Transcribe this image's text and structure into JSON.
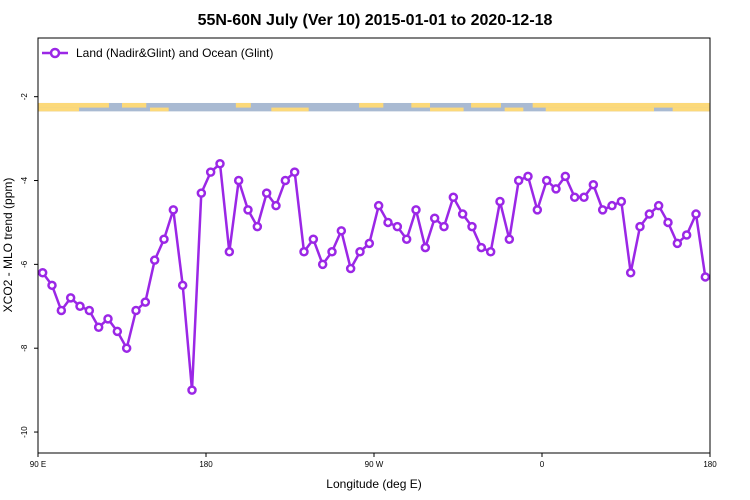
{
  "chart_data": {
    "type": "line",
    "title": "55N-60N July (Ver 10)   2015-01-01 to 2020-12-18",
    "xlabel": "Longitude (deg E)",
    "ylabel": "XCO2 - MLO trend (ppm)",
    "xlim": [
      90,
      450
    ],
    "ylim": [
      -10.5,
      -0.6
    ],
    "x_ticks": [
      {
        "value": 90,
        "label": "90 E"
      },
      {
        "value": 180,
        "label": "180"
      },
      {
        "value": 270,
        "label": "90 W"
      },
      {
        "value": 360,
        "label": "0"
      },
      {
        "value": 450,
        "label": "180"
      }
    ],
    "y_ticks": [
      {
        "value": -2,
        "label": "-2"
      },
      {
        "value": -4,
        "label": "-4"
      },
      {
        "value": -6,
        "label": "-6"
      },
      {
        "value": -8,
        "label": "-8"
      },
      {
        "value": -10,
        "label": "-10"
      }
    ],
    "grid": false,
    "legend_position": "top-left",
    "land_ocean_strip": {
      "y_range": [
        -2.15,
        -2.35
      ],
      "land_color": "#fcd97a",
      "ocean_color": "#a9bad2"
    },
    "series": [
      {
        "name": "Land (Nadir&Glint) and Ocean (Glint)",
        "color": "#9b27e6",
        "marker": "open-circle",
        "x": [
          92.5,
          97.5,
          102.5,
          107.5,
          112.5,
          117.5,
          122.5,
          127.5,
          132.5,
          137.5,
          142.5,
          147.5,
          152.5,
          157.5,
          162.5,
          167.5,
          172.5,
          177.5,
          182.5,
          187.5,
          192.5,
          197.5,
          202.5,
          207.5,
          212.5,
          217.5,
          222.5,
          227.5,
          232.5,
          237.5,
          242.5,
          247.5,
          252.5,
          257.5,
          262.5,
          267.5,
          272.5,
          277.5,
          282.5,
          287.5,
          292.5,
          297.5,
          302.5,
          307.5,
          312.5,
          317.5,
          322.5,
          327.5,
          332.5,
          337.5,
          342.5,
          347.5,
          352.5,
          357.5,
          362.5,
          367.5,
          372.5,
          377.5,
          382.5,
          387.5,
          392.5,
          397.5,
          402.5,
          407.5,
          412.5,
          417.5,
          422.5,
          427.5,
          432.5,
          437.5,
          442.5,
          447.5
        ],
        "y": [
          -6.2,
          -6.5,
          -7.1,
          -6.8,
          -7.0,
          -7.1,
          -7.5,
          -7.3,
          -7.6,
          -8.0,
          -7.1,
          -6.9,
          -5.9,
          -5.4,
          -4.7,
          -6.5,
          -9.0,
          -4.3,
          -3.8,
          -3.6,
          -5.7,
          -4.0,
          -4.7,
          -5.1,
          -4.3,
          -4.6,
          -4.0,
          -3.8,
          -5.7,
          -5.4,
          -6.0,
          -5.7,
          -5.2,
          -6.1,
          -5.7,
          -5.5,
          -4.6,
          -5.0,
          -5.1,
          -5.4,
          -4.7,
          -5.6,
          -4.9,
          -5.1,
          -4.4,
          -4.8,
          -5.1,
          -5.6,
          -5.7,
          -4.5,
          -5.4,
          -4.0,
          -3.9,
          -4.7,
          -4.0,
          -4.2,
          -3.9,
          -4.4,
          -4.4,
          -4.1,
          -4.7,
          -4.6,
          -4.5,
          -6.2,
          -5.1,
          -4.8,
          -4.6,
          -5.0,
          -5.5,
          -5.3,
          -4.8,
          -6.3
        ]
      }
    ]
  }
}
